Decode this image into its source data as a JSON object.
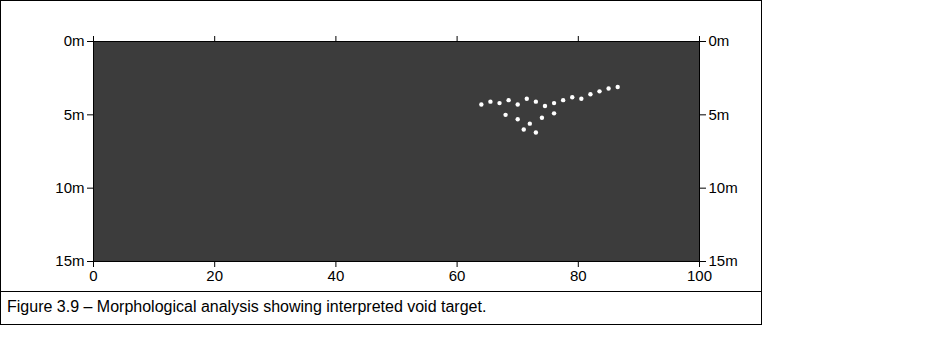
{
  "chart_data": {
    "type": "scatter",
    "caption": "Figure 3.9 – Morphological analysis showing interpreted void target.",
    "xlim": [
      0,
      100
    ],
    "xticks": [
      0,
      20,
      40,
      60,
      80,
      100
    ],
    "ylim": [
      0,
      15
    ],
    "yticks": [
      {
        "value": 0,
        "label": "0m"
      },
      {
        "value": 5,
        "label": "5m"
      },
      {
        "value": 10,
        "label": "10m"
      },
      {
        "value": 15,
        "label": "15m"
      }
    ],
    "x": [
      64,
      65.5,
      67,
      68.5,
      70,
      71.5,
      73,
      74.5,
      76,
      77.5,
      79,
      80.5,
      82,
      83.5,
      85,
      86.5,
      68,
      70,
      72,
      74,
      76,
      71,
      73
    ],
    "values": [
      4.3,
      4.1,
      4.2,
      4.0,
      4.3,
      3.9,
      4.1,
      4.4,
      4.2,
      4.0,
      3.8,
      3.9,
      3.6,
      3.4,
      3.2,
      3.1,
      5.0,
      5.3,
      5.6,
      5.2,
      4.9,
      6.0,
      6.2
    ],
    "color": "#ffffff",
    "grid": false
  }
}
